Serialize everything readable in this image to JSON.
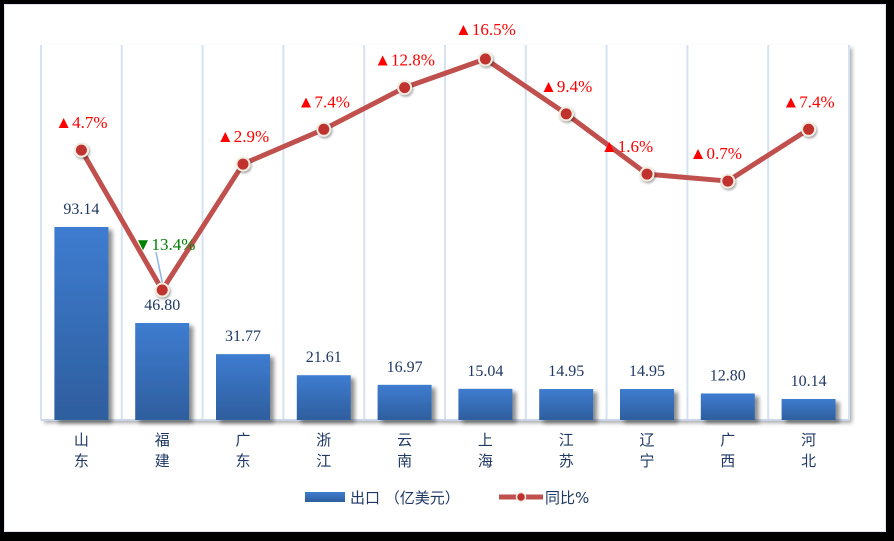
{
  "chart_data": {
    "type": "bar",
    "title": "",
    "xlabel": "",
    "ylabel": "",
    "categories": [
      "山东",
      "福建",
      "广东",
      "浙江",
      "云南",
      "上海",
      "江苏",
      "辽宁",
      "广西",
      "河北"
    ],
    "series": [
      {
        "name": "出口（亿美元）",
        "type": "bar",
        "values": [
          93.14,
          46.8,
          31.77,
          21.61,
          16.97,
          15.04,
          14.95,
          14.95,
          12.8,
          10.14
        ],
        "labels": [
          "93.14",
          "46.80",
          "31.77",
          "21.61",
          "16.97",
          "15.04",
          "14.95",
          "14.95",
          "12.80",
          "10.14"
        ],
        "color": "#3a72c2"
      },
      {
        "name": "同比%",
        "type": "line",
        "axis": "secondary",
        "values": [
          4.7,
          -13.4,
          2.9,
          7.4,
          12.8,
          16.5,
          9.4,
          1.6,
          0.7,
          7.4
        ],
        "labels": [
          "▲4.7%",
          "▼13.4%",
          "▲2.9%",
          "▲7.4%",
          "▲12.8%",
          "▲16.5%",
          "▲9.4%",
          "▲1.6%",
          "▲0.7%",
          "▲7.4%"
        ],
        "color": "#c0504d"
      }
    ],
    "grid": "vertical category separators",
    "legend_position": "bottom",
    "colors": {
      "bar": "#3a72c2",
      "line": "#c0504d",
      "positive_label": "#ff0000",
      "negative_label": "#008000",
      "axis_text": "#1f3864",
      "grid": "#d6e2f2"
    }
  },
  "legend": {
    "items": [
      {
        "label": "出口 （亿美元）",
        "marker": "bar"
      },
      {
        "label": "同比%",
        "marker": "line-dot"
      }
    ]
  }
}
